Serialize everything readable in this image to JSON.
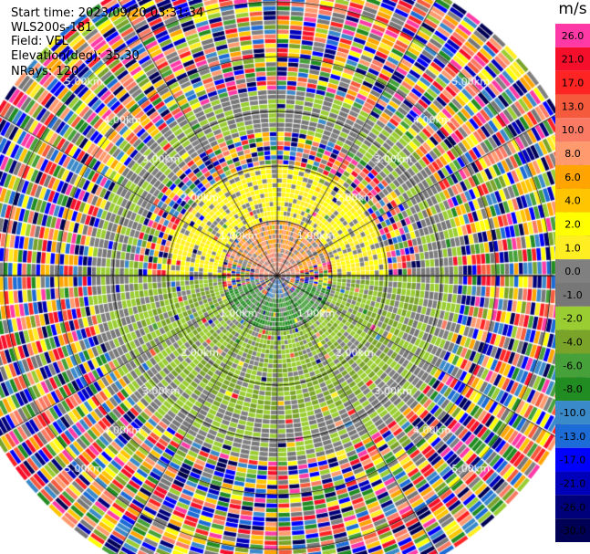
{
  "info": {
    "start_time": "Start time: 2023/09/20 03:31:34",
    "instrument": "WLS200s-181",
    "field": "Field: VEL",
    "elevation": "Elevation(deg): 35.30",
    "nrays": "NRays: 120"
  },
  "colorbar": {
    "unit": "m/s",
    "levels": [
      "26.0",
      "21.0",
      "17.0",
      "13.0",
      "10.0",
      "8.0",
      "6.0",
      "4.0",
      "2.0",
      "1.0",
      "0.0",
      "-1.0",
      "-2.0",
      "-4.0",
      "-6.0",
      "-8.0",
      "-10.0",
      "-13.0",
      "-17.0",
      "-21.0",
      "-26.0",
      "-30.0"
    ],
    "colors": [
      "#ff3aa6",
      "#f50f2a",
      "#ff2424",
      "#f55a3c",
      "#fa7a64",
      "#ff9a6e",
      "#ffa400",
      "#ffc500",
      "#ffff00",
      "#ffee22",
      "#808080",
      "#777777",
      "#9acd32",
      "#7aa32a",
      "#46a13a",
      "#218c21",
      "#3a89c9",
      "#1c6bd6",
      "#0000ff",
      "#0000bb",
      "#00007a",
      "#000055"
    ]
  },
  "chart_data": {
    "type": "heatmap",
    "projection": "polar PPI",
    "field": "VEL",
    "units": "m/s",
    "range_rings_km": [
      1.0,
      2.0,
      3.0,
      4.0,
      5.0
    ],
    "ring_labels": [
      "1.00km",
      "2.00km",
      "3.00km",
      "4.00km",
      "5.00km"
    ],
    "spokes_deg": [
      0,
      30,
      60,
      90,
      120,
      150,
      180,
      210,
      240,
      270,
      300,
      330
    ],
    "max_range_km": 5.9,
    "nrays": 120,
    "color_scale": {
      "min": -30.0,
      "max": 26.0
    },
    "regions": [
      {
        "range_km": [
          0,
          0.4
        ],
        "azimuth_deg": [
          270,
          90
        ],
        "velocity": 10.0
      },
      {
        "range_km": [
          0.4,
          1.0
        ],
        "azimuth_deg": [
          285,
          75
        ],
        "velocity": 8.0
      },
      {
        "range_km": [
          0,
          0.4
        ],
        "azimuth_deg": [
          150,
          210
        ],
        "velocity": -10.0
      },
      {
        "range_km": [
          0.4,
          1.0
        ],
        "azimuth_deg": [
          105,
          255
        ],
        "velocity": -6.0
      },
      {
        "range_km": [
          1.0,
          2.0
        ],
        "azimuth_deg": [
          270,
          90
        ],
        "velocity": 2.0
      },
      {
        "range_km": [
          1.0,
          2.6
        ],
        "azimuth_deg": [
          90,
          270
        ],
        "velocity": -2.0
      },
      {
        "range_km": [
          2.6,
          3.4
        ],
        "azimuth_deg": [
          0,
          360
        ],
        "velocity": -1.0
      },
      {
        "range_km": [
          3.4,
          5.9
        ],
        "azimuth_deg": [
          0,
          360
        ],
        "velocity": "noise"
      }
    ]
  }
}
